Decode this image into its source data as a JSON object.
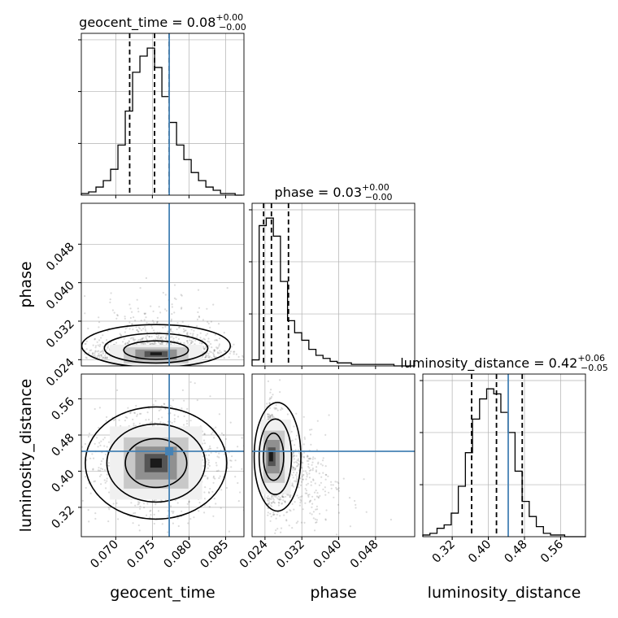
{
  "chart_data": [
    {
      "type": "histogram",
      "name": "geocent_time",
      "title": {
        "prefix": "geocent_time = 0.08",
        "sup": "+0.00",
        "sub": "−0.00"
      },
      "xlim": [
        0.0653,
        0.0875
      ],
      "bin_start": 0.0653,
      "bin_width": 0.001,
      "counts": [
        1,
        2,
        5,
        9,
        16,
        31,
        52,
        76,
        86,
        91,
        79,
        61,
        45,
        31,
        22,
        14,
        9,
        5,
        3,
        1,
        1,
        0
      ],
      "quantiles": [
        0.0719,
        0.0753,
        0.0773
      ],
      "truth": 0.0773,
      "xticks": [
        "0.070",
        "0.075",
        "0.080",
        "0.085"
      ]
    },
    {
      "type": "histogram",
      "name": "phase",
      "title": {
        "prefix": "phase = 0.03",
        "sup": "+0.00",
        "sub": "−0.00"
      },
      "xlim": [
        0.0212,
        0.0565
      ],
      "bin_start": 0.0212,
      "bin_width": 0.00154,
      "counts": [
        4,
        93,
        98,
        86,
        56,
        30,
        22,
        17,
        11,
        7,
        5,
        3,
        2,
        2,
        1,
        1,
        1,
        1,
        1,
        1,
        0,
        0,
        0
      ],
      "quantiles": [
        0.0237,
        0.0254,
        0.0291
      ],
      "xticks": [
        "0.024",
        "0.032",
        "0.040",
        "0.048"
      ]
    },
    {
      "type": "histogram",
      "name": "luminosity_distance",
      "title": {
        "prefix": "luminosity_distance = 0.42",
        "sup": "+0.06",
        "sub": "−0.05"
      },
      "xlim": [
        0.255,
        0.615
      ],
      "bin_start": 0.255,
      "bin_width": 0.0157,
      "counts": [
        1,
        2,
        5,
        7,
        14,
        30,
        50,
        70,
        82,
        88,
        85,
        74,
        62,
        39,
        21,
        12,
        6,
        2,
        1,
        1,
        0,
        0,
        0
      ],
      "quantiles": [
        0.363,
        0.418,
        0.475
      ],
      "truth": 0.444,
      "xticks": [
        "0.32",
        "0.40",
        "0.48",
        "0.56"
      ]
    },
    {
      "type": "scatter",
      "name": "phase vs geocent_time",
      "x_param": "geocent_time",
      "y_param": "phase",
      "xlim": [
        0.0653,
        0.0875
      ],
      "ylim": [
        0.0227,
        0.0565
      ],
      "center": [
        0.0755,
        0.0253
      ],
      "spread": [
        0.0042,
        0.0035
      ],
      "truth_x": 0.0773,
      "yticks": [
        "0.024",
        "0.032",
        "0.040",
        "0.048"
      ],
      "ylabel": "phase"
    },
    {
      "type": "scatter",
      "name": "luminosity_distance vs geocent_time",
      "x_param": "geocent_time",
      "y_param": "luminosity_distance",
      "xlim": [
        0.0653,
        0.0875
      ],
      "ylim": [
        0.255,
        0.615
      ],
      "center": [
        0.0755,
        0.418
      ],
      "spread": [
        0.0042,
        0.054
      ],
      "truth": [
        0.0773,
        0.444
      ],
      "xticks": [
        "0.070",
        "0.075",
        "0.080",
        "0.085"
      ],
      "yticks": [
        "0.32",
        "0.40",
        "0.48",
        "0.56"
      ],
      "xlabel": "geocent_time",
      "ylabel": "luminosity_distance"
    },
    {
      "type": "scatter",
      "name": "luminosity_distance vs phase",
      "x_param": "phase",
      "y_param": "luminosity_distance",
      "xlim": [
        0.0212,
        0.0565
      ],
      "ylim": [
        0.255,
        0.615
      ],
      "center": [
        0.0252,
        0.432
      ],
      "spread": [
        0.004,
        0.055
      ],
      "truth_y": 0.444,
      "xticks": [
        "0.024",
        "0.032",
        "0.040",
        "0.048"
      ],
      "xlabel": "phase"
    },
    {
      "type": "scatter",
      "name": "luminosity_distance vs luminosity_distance",
      "xlabel": "luminosity_distance",
      "xticks": [
        "0.32",
        "0.40",
        "0.48",
        "0.56"
      ]
    }
  ],
  "colors": {
    "truth": "#4682b4",
    "hist": "#000000",
    "grid": "#b0b0b0",
    "points": "#000000",
    "contour": "#000000"
  }
}
